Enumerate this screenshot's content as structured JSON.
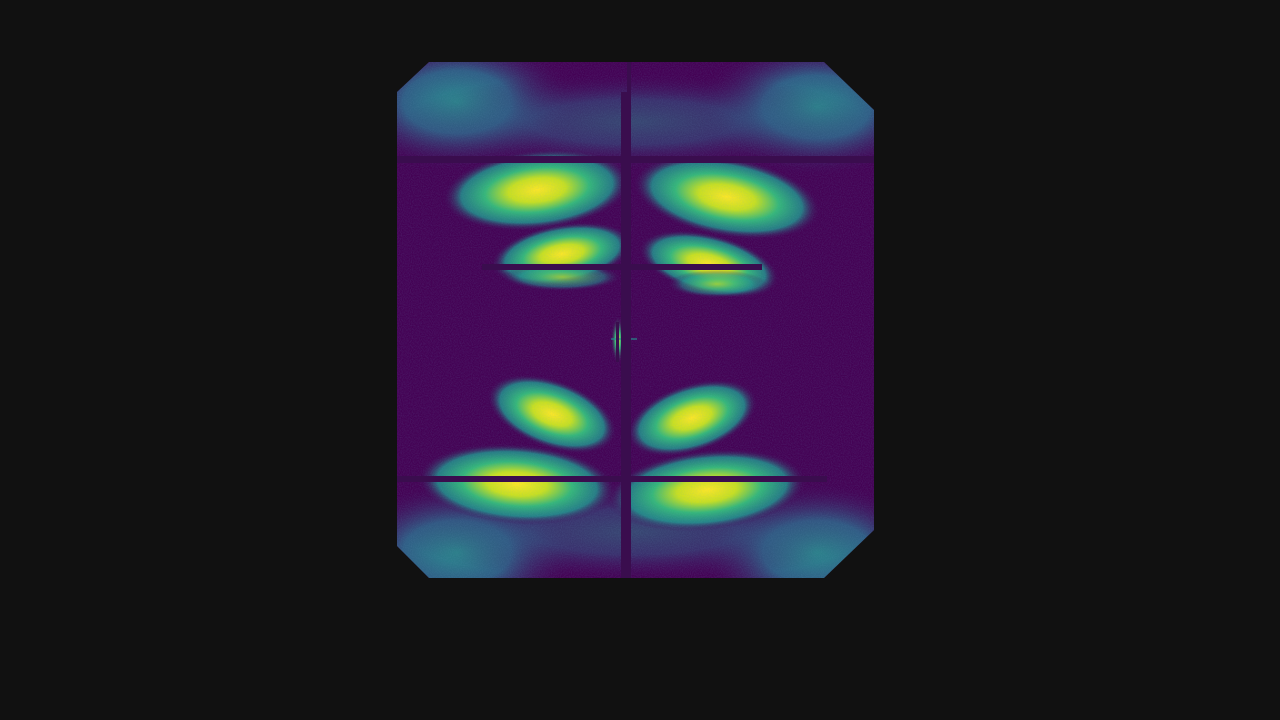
{
  "viewer": {
    "background_color": "#111111"
  },
  "image": {
    "subject": "x-ray-diffraction-pattern",
    "colormap": "viridis",
    "colors": {
      "low": "#440154",
      "mid": "#21918c",
      "high": "#fde725",
      "gap": "#3a0d4e"
    }
  }
}
